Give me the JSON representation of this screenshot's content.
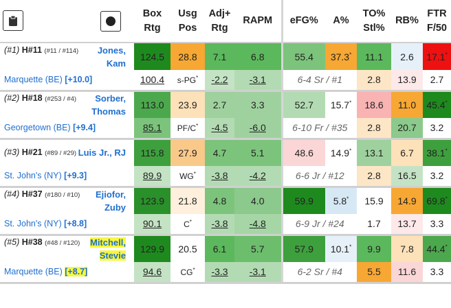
{
  "header": {
    "box_rtg": [
      "Box",
      "Rtg"
    ],
    "usg_pos": [
      "Usg",
      "Pos"
    ],
    "adj_rtg": [
      "Adj+",
      "Rtg"
    ],
    "rapm": "RAPM",
    "efg": "eFG%",
    "a_pct": "A%",
    "to_stl": [
      "TO%",
      "Stl%"
    ],
    "rb": "RB%",
    "ftr": [
      "FTR",
      "F/50"
    ],
    "clipboard_icon": "clipboard-icon",
    "record_icon": "record-icon"
  },
  "players": [
    {
      "rank": "(#1)",
      "hash_rank": "H#11",
      "sub_rank": "(#11 / #114)",
      "name_line1": "Jones,",
      "name_line2": "Kam",
      "team": "Marquette",
      "conf": "(BE)",
      "rating": "[+10.0]",
      "top": {
        "box": "124.5",
        "usg": "28.8",
        "adj": "7.1",
        "rapm": "6.8",
        "efg": "55.4",
        "a": "37.3",
        "a_sup": "*",
        "to": "11.1",
        "rb": "2.6",
        "ftr": "17.1",
        "ftr_sup": "*"
      },
      "bot": {
        "box": "100.4",
        "pos": "s-PG",
        "pos_sup": "*",
        "adj": "-2.2",
        "rapm": "-3.1",
        "info": "6-4 Sr / #1",
        "stl": "2.8",
        "rb": "13.9",
        "f50": "2.7"
      },
      "colors": {
        "box_t": "#1e8a1e",
        "usg_t": "#f7a733",
        "adj_t": "#5cb85c",
        "rapm_t": "#5cb85c",
        "efg_t": "#7cc47c",
        "a_t": "#f7a733",
        "to_t": "#5cb85c",
        "rb_t": "#e6f0f8",
        "ftr_t": "#ee1111",
        "box_b": "#ffffff",
        "adj_b": "#c4e3c4",
        "rapm_b": "#b3dbb3",
        "stl_b": "#fde6c6",
        "rb_b": "#fde9e9",
        "f50_b": "#ffffff"
      }
    },
    {
      "rank": "(#2)",
      "hash_rank": "H#18",
      "sub_rank": "(#253 / #4)",
      "name_line1": "Sorber,",
      "name_line2": "Thomas",
      "team": "Georgetown",
      "conf": "(BE)",
      "rating": "[+9.4]",
      "top": {
        "box": "113.0",
        "usg": "23.9",
        "adj": "2.7",
        "rapm": "3.3",
        "efg": "52.7",
        "a": "15.7",
        "a_sup": "*",
        "to": "18.6",
        "rb": "11.0",
        "ftr": "45.4",
        "ftr_sup": "*"
      },
      "bot": {
        "box": "85.1",
        "pos": "PF/C",
        "pos_sup": "*",
        "adj": "-4.5",
        "rapm": "-6.0",
        "info": "6-10 Fr / #35",
        "stl": "2.8",
        "rb": "20.7",
        "f50": "3.2"
      },
      "colors": {
        "box_t": "#4ca84c",
        "usg_t": "#fde1b8",
        "adj_t": "#9fd19f",
        "rapm_t": "#9fd19f",
        "efg_t": "#b3dbb3",
        "a_t": "#ffffff",
        "to_t": "#f9b3b3",
        "rb_t": "#f7a733",
        "ftr_t": "#1e8a1e",
        "box_b": "#7cc47c",
        "adj_b": "#b3dbb3",
        "rapm_b": "#9fd19f",
        "stl_b": "#fde6c6",
        "rb_b": "#8cc98c",
        "f50_b": "#ffffff"
      }
    },
    {
      "rank": "(#3)",
      "hash_rank": "H#21",
      "sub_rank": "(#89 / #29)",
      "name_line1": "Luis Jr., RJ",
      "name_line2": "",
      "team": "St. John's (NY)",
      "conf": "",
      "rating": "[+9.3]",
      "top": {
        "box": "115.8",
        "usg": "27.9",
        "adj": "4.7",
        "rapm": "5.1",
        "efg": "48.6",
        "a": "14.9",
        "a_sup": "*",
        "to": "13.1",
        "rb": "6.7",
        "ftr": "38.1",
        "ftr_sup": "*"
      },
      "bot": {
        "box": "89.9",
        "pos": "WG",
        "pos_sup": "*",
        "adj": "-3.8",
        "rapm": "-4.2",
        "info": "6-6 Jr / #12",
        "stl": "2.8",
        "rb": "16.5",
        "f50": "3.2"
      },
      "colors": {
        "box_t": "#3da03d",
        "usg_t": "#f9c98a",
        "adj_t": "#7cc47c",
        "rapm_t": "#7cc47c",
        "efg_t": "#fbd6d6",
        "a_t": "#ffffff",
        "to_t": "#9fd19f",
        "rb_t": "#fde1b8",
        "ftr_t": "#3da03d",
        "box_b": "#c4e3c4",
        "adj_b": "#b3dbb3",
        "rapm_b": "#b3dbb3",
        "stl_b": "#fde6c6",
        "rb_b": "#c4e3c4",
        "f50_b": "#ffffff"
      }
    },
    {
      "rank": "(#4)",
      "hash_rank": "H#37",
      "sub_rank": "(#180 / #10)",
      "name_line1": "Ejiofor,",
      "name_line2": "Zuby",
      "team": "St. John's (NY)",
      "conf": "",
      "rating": "[+8.8]",
      "top": {
        "box": "123.9",
        "usg": "21.8",
        "adj": "4.8",
        "rapm": "4.0",
        "efg": "59.9",
        "a": "5.8",
        "a_sup": "*",
        "to": "15.9",
        "rb": "14.9",
        "ftr": "69.8",
        "ftr_sup": "*"
      },
      "bot": {
        "box": "90.1",
        "pos": "C",
        "pos_sup": "*",
        "adj": "-3.8",
        "rapm": "-4.8",
        "info": "6-9 Jr / #24",
        "stl": "1.7",
        "rb": "13.7",
        "f50": "3.3"
      },
      "colors": {
        "box_t": "#2a902a",
        "usg_t": "#fef0dc",
        "adj_t": "#7cc47c",
        "rapm_t": "#8cc98c",
        "efg_t": "#1e8a1e",
        "a_t": "#d7e8f5",
        "to_t": "#ffffff",
        "rb_t": "#f7a733",
        "ftr_t": "#1e8a1e",
        "box_b": "#c4e3c4",
        "adj_b": "#b3dbb3",
        "rapm_b": "#a6d6a6",
        "stl_b": "#ffffff",
        "rb_b": "#fde9e9",
        "f50_b": "#ffffff"
      }
    },
    {
      "rank": "(#5)",
      "hash_rank": "H#38",
      "sub_rank": "(#48 / #120)",
      "name_line1": "Mitchell,",
      "name_line2": "Stevie",
      "team": "Marquette",
      "conf": "(BE)",
      "rating": "[+8.7]",
      "top": {
        "box": "129.9",
        "usg": "20.5",
        "adj": "6.1",
        "rapm": "5.7",
        "efg": "57.9",
        "a": "10.1",
        "a_sup": "*",
        "to": "9.9",
        "rb": "7.8",
        "ftr": "44.4",
        "ftr_sup": "*"
      },
      "bot": {
        "box": "94.6",
        "pos": "CG",
        "pos_sup": "*",
        "adj": "-3.3",
        "rapm": "-3.1",
        "info": "6-2 Sr / #4",
        "stl": "5.5",
        "rb": "11.6",
        "f50": "3.3"
      },
      "colors": {
        "box_t": "#1e8a1e",
        "usg_t": "#ffffff",
        "adj_t": "#5cb85c",
        "rapm_t": "#6cbd6c",
        "efg_t": "#3da03d",
        "a_t": "#e6f0f8",
        "to_t": "#5cb85c",
        "rb_t": "#fde1b8",
        "ftr_t": "#4ca84c",
        "box_b": "#c4e3c4",
        "adj_b": "#b3dbb3",
        "rapm_b": "#b3dbb3",
        "stl_b": "#f7a733",
        "rb_b": "#fbd6d6",
        "f50_b": "#ffffff"
      }
    }
  ]
}
